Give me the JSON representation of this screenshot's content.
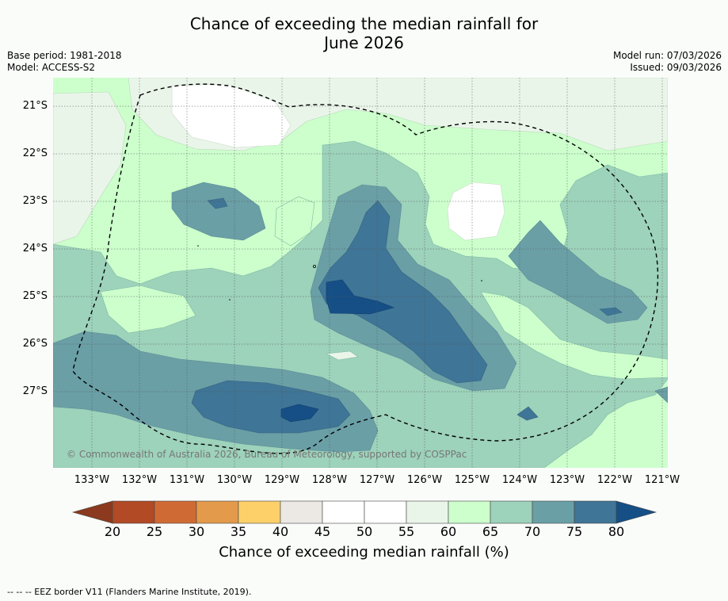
{
  "title": {
    "line1": "Chance of exceeding the median rainfall for",
    "line2": "June 2026"
  },
  "meta": {
    "base_period": "Base period: 1981-2018",
    "model": "Model: ACCESS-S2",
    "model_run": "Model run: 07/03/2026",
    "issued": "Issued: 09/03/2026"
  },
  "map": {
    "latitude_labels": [
      "21°S",
      "22°S",
      "23°S",
      "24°S",
      "25°S",
      "26°S",
      "27°S"
    ],
    "longitude_labels": [
      "133°W",
      "132°W",
      "131°W",
      "130°W",
      "129°W",
      "128°W",
      "127°W",
      "126°W",
      "125°W",
      "124°W",
      "123°W",
      "122°W",
      "121°W"
    ],
    "credit": "© Commonwealth of Australia 2026, Bureau of Meteorology, supported by COSPPac"
  },
  "colorbar": {
    "ticks": [
      "20",
      "25",
      "30",
      "35",
      "40",
      "45",
      "50",
      "55",
      "60",
      "65",
      "70",
      "75",
      "80"
    ],
    "colors": [
      "#8b3a1f",
      "#b24a25",
      "#d06a34",
      "#e39a4a",
      "#fdd06a",
      "#ece9e4",
      "#ffffff",
      "#ffffff",
      "#eaf5ea",
      "#ccffcc",
      "#9dd2bb",
      "#6a9fa6",
      "#3f7596",
      "#154f86"
    ],
    "label": "Chance of exceeding median rainfall (%)"
  },
  "footnote": "--  --  -- EEZ border V11 (Flanders Marine Institute, 2019)."
}
